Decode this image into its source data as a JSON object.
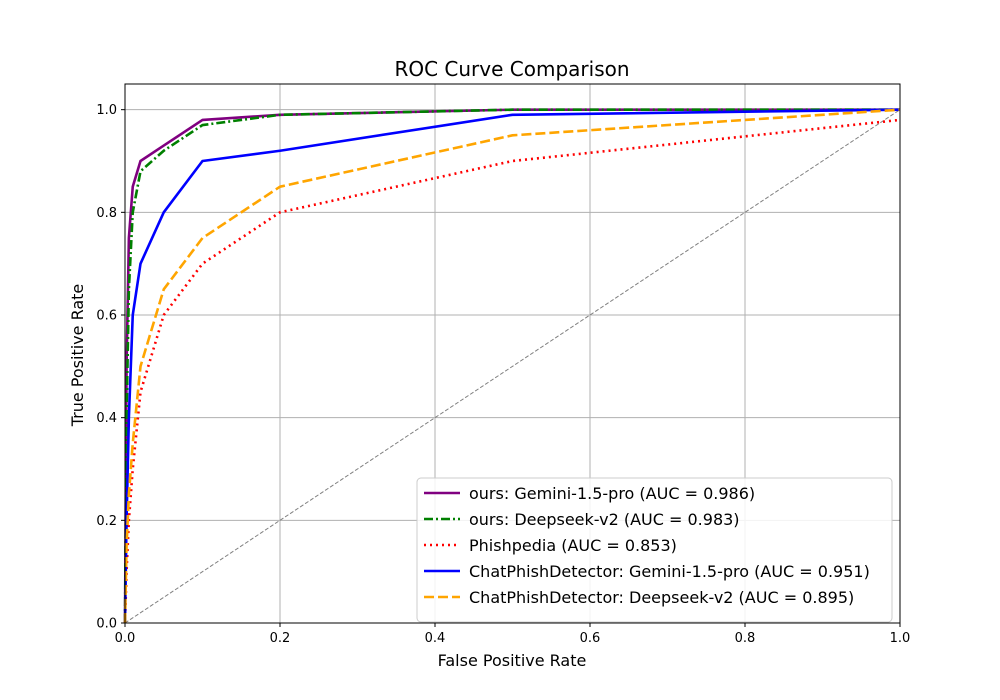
{
  "chart_data": {
    "type": "line",
    "title": "ROC Curve Comparison",
    "xlabel": "False Positive Rate",
    "ylabel": "True Positive Rate",
    "xlim": [
      0,
      1.0
    ],
    "ylim": [
      0,
      1.05
    ],
    "xticks": [
      0.0,
      0.2,
      0.4,
      0.6,
      0.8,
      1.0
    ],
    "xtick_labels": [
      "0.0",
      "0.2",
      "0.4",
      "0.6",
      "0.8",
      "1.0"
    ],
    "yticks": [
      0.0,
      0.2,
      0.4,
      0.6,
      0.8,
      1.0
    ],
    "ytick_labels": [
      "0.0",
      "0.2",
      "0.4",
      "0.6",
      "0.8",
      "1.0"
    ],
    "grid": true,
    "legend_position": "lower-right",
    "diagonal": {
      "x": [
        0,
        1
      ],
      "y": [
        0,
        1
      ],
      "color": "#808080",
      "style": "dashed"
    },
    "series": [
      {
        "name": "ours: Gemini-1.5-pro (AUC = 0.986)",
        "color": "#800080",
        "style": "solid",
        "x": [
          0,
          0.002,
          0.005,
          0.01,
          0.02,
          0.05,
          0.1,
          0.2,
          0.5,
          1.0
        ],
        "y": [
          0,
          0.5,
          0.75,
          0.85,
          0.9,
          0.93,
          0.98,
          0.99,
          1.0,
          1.0
        ]
      },
      {
        "name": "ours: Deepseek-v2 (AUC = 0.983)",
        "color": "#008000",
        "style": "dashdot",
        "x": [
          0,
          0.002,
          0.005,
          0.01,
          0.02,
          0.05,
          0.1,
          0.2,
          0.5,
          1.0
        ],
        "y": [
          0,
          0.4,
          0.65,
          0.8,
          0.88,
          0.92,
          0.97,
          0.99,
          1.0,
          1.0
        ]
      },
      {
        "name": "Phishpedia (AUC = 0.853)",
        "color": "#ff0000",
        "style": "dotted",
        "x": [
          0,
          0.002,
          0.005,
          0.01,
          0.02,
          0.05,
          0.1,
          0.2,
          0.5,
          1.0
        ],
        "y": [
          0,
          0.1,
          0.2,
          0.3,
          0.45,
          0.6,
          0.7,
          0.8,
          0.9,
          0.98
        ]
      },
      {
        "name": "ChatPhishDetector: Gemini-1.5-pro (AUC = 0.951)",
        "color": "#0000ff",
        "style": "solid",
        "x": [
          0,
          0.002,
          0.005,
          0.01,
          0.02,
          0.05,
          0.1,
          0.2,
          0.5,
          1.0
        ],
        "y": [
          0,
          0.2,
          0.4,
          0.6,
          0.7,
          0.8,
          0.9,
          0.92,
          0.99,
          1.0
        ]
      },
      {
        "name": "ChatPhishDetector: Deepseek-v2 (AUC = 0.895)",
        "color": "#ffa500",
        "style": "dashed",
        "x": [
          0,
          0.002,
          0.005,
          0.01,
          0.02,
          0.05,
          0.1,
          0.2,
          0.5,
          1.0
        ],
        "y": [
          0,
          0.15,
          0.25,
          0.35,
          0.5,
          0.65,
          0.75,
          0.85,
          0.95,
          1.0
        ]
      }
    ]
  }
}
